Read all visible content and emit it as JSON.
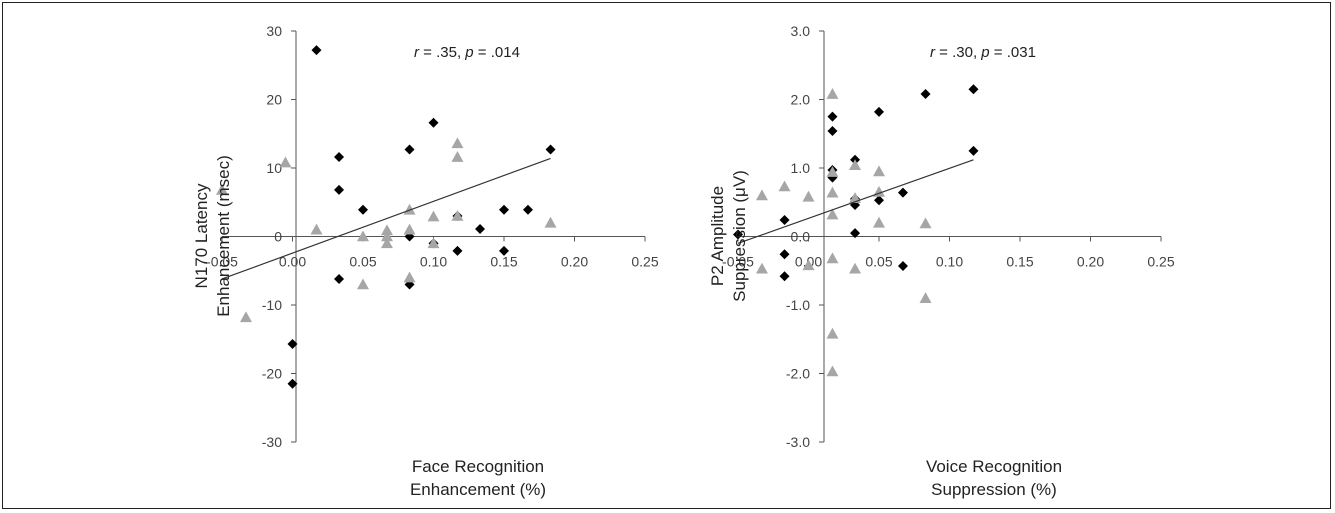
{
  "chart_data": [
    {
      "type": "scatter",
      "ylabel_lines": [
        "N170 Latency",
        "Enhancement (msec)"
      ],
      "xlabel_lines": [
        "Face Recognition",
        "Enhancement (%)"
      ],
      "annotation": {
        "r_sym": "r",
        "r_val": " = .35, ",
        "p_sym": "p",
        "p_val": " = .014"
      },
      "xlim": [
        -0.05,
        0.25
      ],
      "ylim": [
        -30,
        30
      ],
      "xticks": [
        "-0.05",
        "0.00",
        "0.05",
        "0.10",
        "0.15",
        "0.20",
        "0.25"
      ],
      "xtick_values": [
        -0.05,
        0,
        0.05,
        0.1,
        0.15,
        0.2,
        0.25
      ],
      "yticks": [
        "30",
        "20",
        "10",
        "0",
        "-10",
        "-20",
        "-30"
      ],
      "ytick_values": [
        30,
        20,
        10,
        0,
        -10,
        -20,
        -30
      ],
      "series": [
        {
          "marker": "diamond",
          "color": "#000000",
          "points": [
            [
              0.0,
              -15.7
            ],
            [
              0.0,
              -21.5
            ],
            [
              0.017,
              27.2
            ],
            [
              0.033,
              11.6
            ],
            [
              0.033,
              6.8
            ],
            [
              0.033,
              -6.2
            ],
            [
              0.05,
              3.9
            ],
            [
              0.083,
              12.7
            ],
            [
              0.083,
              0.0
            ],
            [
              0.083,
              -7.0
            ],
            [
              0.1,
              16.6
            ],
            [
              0.1,
              -1.0
            ],
            [
              0.117,
              3.0
            ],
            [
              0.117,
              -2.1
            ],
            [
              0.133,
              1.1
            ],
            [
              0.15,
              3.9
            ],
            [
              0.15,
              -2.1
            ],
            [
              0.167,
              3.9
            ],
            [
              0.183,
              12.7
            ]
          ]
        },
        {
          "marker": "triangle",
          "color": "#a6a6a6",
          "points": [
            [
              -0.05,
              6.8
            ],
            [
              -0.033,
              -11.8
            ],
            [
              -0.005,
              10.8
            ],
            [
              0.017,
              1.0
            ],
            [
              0.05,
              0.0
            ],
            [
              0.05,
              -7.0
            ],
            [
              0.067,
              0.9
            ],
            [
              0.067,
              0.0
            ],
            [
              0.067,
              -1.0
            ],
            [
              0.083,
              3.9
            ],
            [
              0.083,
              1.0
            ],
            [
              0.083,
              -6.0
            ],
            [
              0.1,
              2.9
            ],
            [
              0.1,
              -1.0
            ],
            [
              0.117,
              13.6
            ],
            [
              0.117,
              11.6
            ],
            [
              0.117,
              3.0
            ],
            [
              0.183,
              2.0
            ]
          ]
        }
      ],
      "trendline": [
        [
          -0.05,
          -6.2
        ],
        [
          0.183,
          11.4
        ]
      ]
    },
    {
      "type": "scatter",
      "ylabel_lines": [
        "P2 Amplitude",
        "Suppression (μV)"
      ],
      "xlabel_lines": [
        "Voice Recognition",
        "Suppression (%)"
      ],
      "annotation": {
        "r_sym": "r",
        "r_val": " = .30, ",
        "p_sym": "p",
        "p_val": " = .031"
      },
      "xlim": [
        -0.05,
        0.25
      ],
      "ylim": [
        -3,
        3
      ],
      "xticks": [
        "-0.05",
        "0.00",
        "0.05",
        "0.10",
        "0.15",
        "0.20",
        "0.25"
      ],
      "xtick_values": [
        -0.05,
        0,
        0.05,
        0.1,
        0.15,
        0.2,
        0.25
      ],
      "yticks": [
        "3.0",
        "2.0",
        "1.0",
        "0.0",
        "-1.0",
        "-2.0",
        "-3.0"
      ],
      "ytick_values": [
        3,
        2,
        1,
        0,
        -1,
        -2,
        -3
      ],
      "series": [
        {
          "marker": "diamond",
          "color": "#000000",
          "points": [
            [
              -0.05,
              0.03
            ],
            [
              -0.017,
              0.24
            ],
            [
              -0.017,
              -0.26
            ],
            [
              -0.017,
              -0.58
            ],
            [
              0.017,
              1.75
            ],
            [
              0.017,
              1.54
            ],
            [
              0.017,
              0.97
            ],
            [
              0.017,
              0.86
            ],
            [
              0.033,
              1.12
            ],
            [
              0.033,
              0.55
            ],
            [
              0.033,
              0.46
            ],
            [
              0.033,
              0.05
            ],
            [
              0.05,
              1.82
            ],
            [
              0.05,
              0.53
            ],
            [
              0.067,
              0.64
            ],
            [
              0.067,
              -0.43
            ],
            [
              0.083,
              2.08
            ],
            [
              0.117,
              2.15
            ],
            [
              0.117,
              1.25
            ]
          ]
        },
        {
          "marker": "triangle",
          "color": "#a6a6a6",
          "points": [
            [
              -0.033,
              0.6
            ],
            [
              -0.033,
              -0.47
            ],
            [
              -0.017,
              0.73
            ],
            [
              0.0,
              0.58
            ],
            [
              0.0,
              -0.42
            ],
            [
              0.017,
              2.08
            ],
            [
              0.017,
              0.94
            ],
            [
              0.017,
              0.64
            ],
            [
              0.017,
              0.32
            ],
            [
              0.017,
              -0.32
            ],
            [
              0.017,
              -1.42
            ],
            [
              0.017,
              -1.97
            ],
            [
              0.033,
              1.04
            ],
            [
              0.033,
              0.56
            ],
            [
              0.033,
              -0.47
            ],
            [
              0.05,
              0.95
            ],
            [
              0.05,
              0.65
            ],
            [
              0.05,
              0.2
            ],
            [
              0.083,
              0.19
            ],
            [
              0.083,
              -0.9
            ]
          ]
        }
      ],
      "trendline": [
        [
          -0.05,
          -0.1
        ],
        [
          0.117,
          1.12
        ]
      ]
    }
  ]
}
